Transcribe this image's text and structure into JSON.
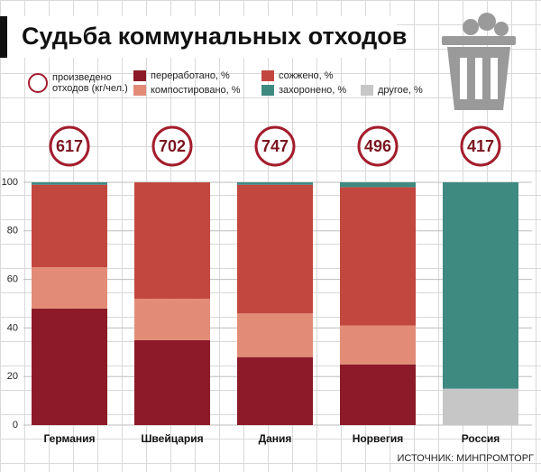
{
  "chart_data": {
    "type": "bar",
    "stacked": true,
    "title": "Судьба коммунальных отходов",
    "source": "ИСТОЧНИК: МИНПРОМТОРГ",
    "categories": [
      "Германия",
      "Швейцария",
      "Дания",
      "Норвегия",
      "Россия"
    ],
    "circle_label": "произведено отходов (кг/чел.)",
    "circle_values": [
      617,
      702,
      747,
      496,
      417
    ],
    "circle_color": "#a31d2c",
    "series": [
      {
        "name": "другое, %",
        "color": "#c6c6c6",
        "values": [
          0,
          0,
          0,
          0,
          15
        ]
      },
      {
        "name": "переработано, %",
        "color": "#8c1a28",
        "values": [
          48,
          35,
          28,
          25,
          0
        ]
      },
      {
        "name": "компостировано, %",
        "color": "#e28c78",
        "values": [
          17,
          17,
          18,
          16,
          0
        ]
      },
      {
        "name": "сожжено, %",
        "color": "#c2473f",
        "values": [
          34,
          48,
          53,
          57,
          0
        ]
      },
      {
        "name": "захоронено, %",
        "color": "#3e8a81",
        "values": [
          1,
          0,
          1,
          2,
          85
        ]
      }
    ],
    "ylim": [
      0,
      100
    ],
    "yticks": [
      0,
      20,
      40,
      60,
      80,
      100
    ],
    "grid": true
  }
}
